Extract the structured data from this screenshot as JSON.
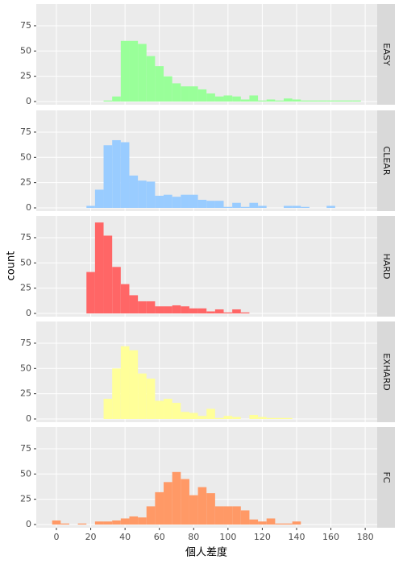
{
  "xlabel": "個人差度",
  "ylabel": "count",
  "chart_data": [
    {
      "type": "histogram",
      "title": "EASY",
      "color": "#99ff99",
      "bins": [
        -2.5,
        2.5,
        7.5,
        12.5,
        17.5,
        22.5,
        27.5,
        32.5,
        37.5,
        42.5,
        47.5,
        52.5,
        57.5,
        62.5,
        67.5,
        72.5,
        77.5,
        82.5,
        87.5,
        92.5,
        97.5,
        102.5,
        107.5,
        112.5,
        117.5,
        122.5,
        127.5,
        132.5,
        137.5,
        142.5,
        147.5,
        152.5,
        157.5,
        162.5,
        167.5,
        172.5,
        177.5,
        182.5
      ],
      "counts": [
        0,
        0,
        0,
        0,
        0,
        0,
        1,
        5,
        60,
        60,
        57,
        45,
        35,
        25,
        18,
        15,
        15,
        12,
        8,
        5,
        6,
        5,
        2,
        6,
        1,
        2,
        1,
        3,
        2,
        1,
        1,
        1,
        1,
        1,
        1,
        1,
        0
      ],
      "xlim": [
        -11.75,
        187
      ],
      "ylim": [
        -3.19,
        96.5
      ],
      "xticks": [
        0,
        20,
        40,
        60,
        80,
        100,
        120,
        140,
        160,
        180
      ],
      "yticks": [
        0,
        25,
        50,
        75
      ],
      "grid": true
    },
    {
      "type": "histogram",
      "title": "CLEAR",
      "color": "#99ccff",
      "bins": [
        -2.5,
        2.5,
        7.5,
        12.5,
        17.5,
        22.5,
        27.5,
        32.5,
        37.5,
        42.5,
        47.5,
        52.5,
        57.5,
        62.5,
        67.5,
        72.5,
        77.5,
        82.5,
        87.5,
        92.5,
        97.5,
        102.5,
        107.5,
        112.5,
        117.5,
        122.5,
        127.5,
        132.5,
        137.5,
        142.5,
        147.5,
        152.5,
        157.5,
        162.5,
        167.5,
        172.5,
        177.5,
        182.5
      ],
      "counts": [
        0,
        0,
        0,
        0,
        2,
        18,
        62,
        67,
        65,
        32,
        27,
        26,
        12,
        13,
        11,
        13,
        13,
        8,
        7,
        7,
        1,
        5,
        1,
        5,
        2,
        0,
        0,
        2,
        2,
        1,
        0,
        0,
        2,
        0,
        0,
        0,
        0
      ],
      "xlim": [
        -11.75,
        187
      ],
      "ylim": [
        -3.19,
        96.5
      ],
      "xticks": [
        0,
        20,
        40,
        60,
        80,
        100,
        120,
        140,
        160,
        180
      ],
      "yticks": [
        0,
        25,
        50,
        75
      ],
      "grid": true
    },
    {
      "type": "histogram",
      "title": "HARD",
      "color": "#ff6666",
      "bins": [
        -2.5,
        2.5,
        7.5,
        12.5,
        17.5,
        22.5,
        27.5,
        32.5,
        37.5,
        42.5,
        47.5,
        52.5,
        57.5,
        62.5,
        67.5,
        72.5,
        77.5,
        82.5,
        87.5,
        92.5,
        97.5,
        102.5,
        107.5,
        112.5,
        117.5,
        122.5,
        127.5,
        132.5,
        137.5,
        142.5,
        147.5,
        152.5,
        157.5,
        162.5,
        167.5,
        172.5,
        177.5,
        182.5
      ],
      "counts": [
        0,
        0,
        0,
        0,
        41,
        90,
        77,
        46,
        29,
        18,
        12,
        12,
        7,
        7,
        8,
        7,
        5,
        5,
        2,
        4,
        1,
        4,
        1,
        0,
        0,
        0,
        0,
        0,
        0,
        0,
        0,
        0,
        0,
        0,
        0,
        0,
        0
      ],
      "xlim": [
        -11.75,
        187
      ],
      "ylim": [
        -3.19,
        96.5
      ],
      "xticks": [
        0,
        20,
        40,
        60,
        80,
        100,
        120,
        140,
        160,
        180
      ],
      "yticks": [
        0,
        25,
        50,
        75
      ],
      "grid": true
    },
    {
      "type": "histogram",
      "title": "EXHARD",
      "color": "#ffff99",
      "bins": [
        -2.5,
        2.5,
        7.5,
        12.5,
        17.5,
        22.5,
        27.5,
        32.5,
        37.5,
        42.5,
        47.5,
        52.5,
        57.5,
        62.5,
        67.5,
        72.5,
        77.5,
        82.5,
        87.5,
        92.5,
        97.5,
        102.5,
        107.5,
        112.5,
        117.5,
        122.5,
        127.5,
        132.5,
        137.5,
        142.5,
        147.5,
        152.5,
        157.5,
        162.5,
        167.5,
        172.5,
        177.5,
        182.5
      ],
      "counts": [
        0,
        0,
        0,
        0,
        0,
        0,
        20,
        50,
        72,
        68,
        45,
        40,
        18,
        20,
        16,
        7,
        6,
        3,
        10,
        1,
        3,
        2,
        0,
        4,
        2,
        1,
        1,
        1,
        0,
        0,
        0,
        0,
        0,
        0,
        0,
        0,
        0
      ],
      "xlim": [
        -11.75,
        187
      ],
      "ylim": [
        -3.19,
        96.5
      ],
      "xticks": [
        0,
        20,
        40,
        60,
        80,
        100,
        120,
        140,
        160,
        180
      ],
      "yticks": [
        0,
        25,
        50,
        75
      ],
      "grid": true
    },
    {
      "type": "histogram",
      "title": "FC",
      "color": "#ff9966",
      "bins": [
        -2.5,
        2.5,
        7.5,
        12.5,
        17.5,
        22.5,
        27.5,
        32.5,
        37.5,
        42.5,
        47.5,
        52.5,
        57.5,
        62.5,
        67.5,
        72.5,
        77.5,
        82.5,
        87.5,
        92.5,
        97.5,
        102.5,
        107.5,
        112.5,
        117.5,
        122.5,
        127.5,
        132.5,
        137.5,
        142.5,
        147.5,
        152.5,
        157.5,
        162.5,
        167.5,
        172.5,
        177.5,
        182.5
      ],
      "counts": [
        4,
        1,
        0,
        1,
        0,
        3,
        3,
        4,
        6,
        8,
        7,
        18,
        32,
        42,
        52,
        45,
        29,
        37,
        31,
        18,
        18,
        18,
        14,
        5,
        3,
        6,
        1,
        1,
        3,
        0,
        0,
        0,
        0,
        0,
        0,
        0,
        0
      ],
      "xlim": [
        -11.75,
        187
      ],
      "ylim": [
        -3.19,
        96.5
      ],
      "xticks": [
        0,
        20,
        40,
        60,
        80,
        100,
        120,
        140,
        160,
        180
      ],
      "yticks": [
        0,
        25,
        50,
        75
      ],
      "grid": true
    }
  ]
}
